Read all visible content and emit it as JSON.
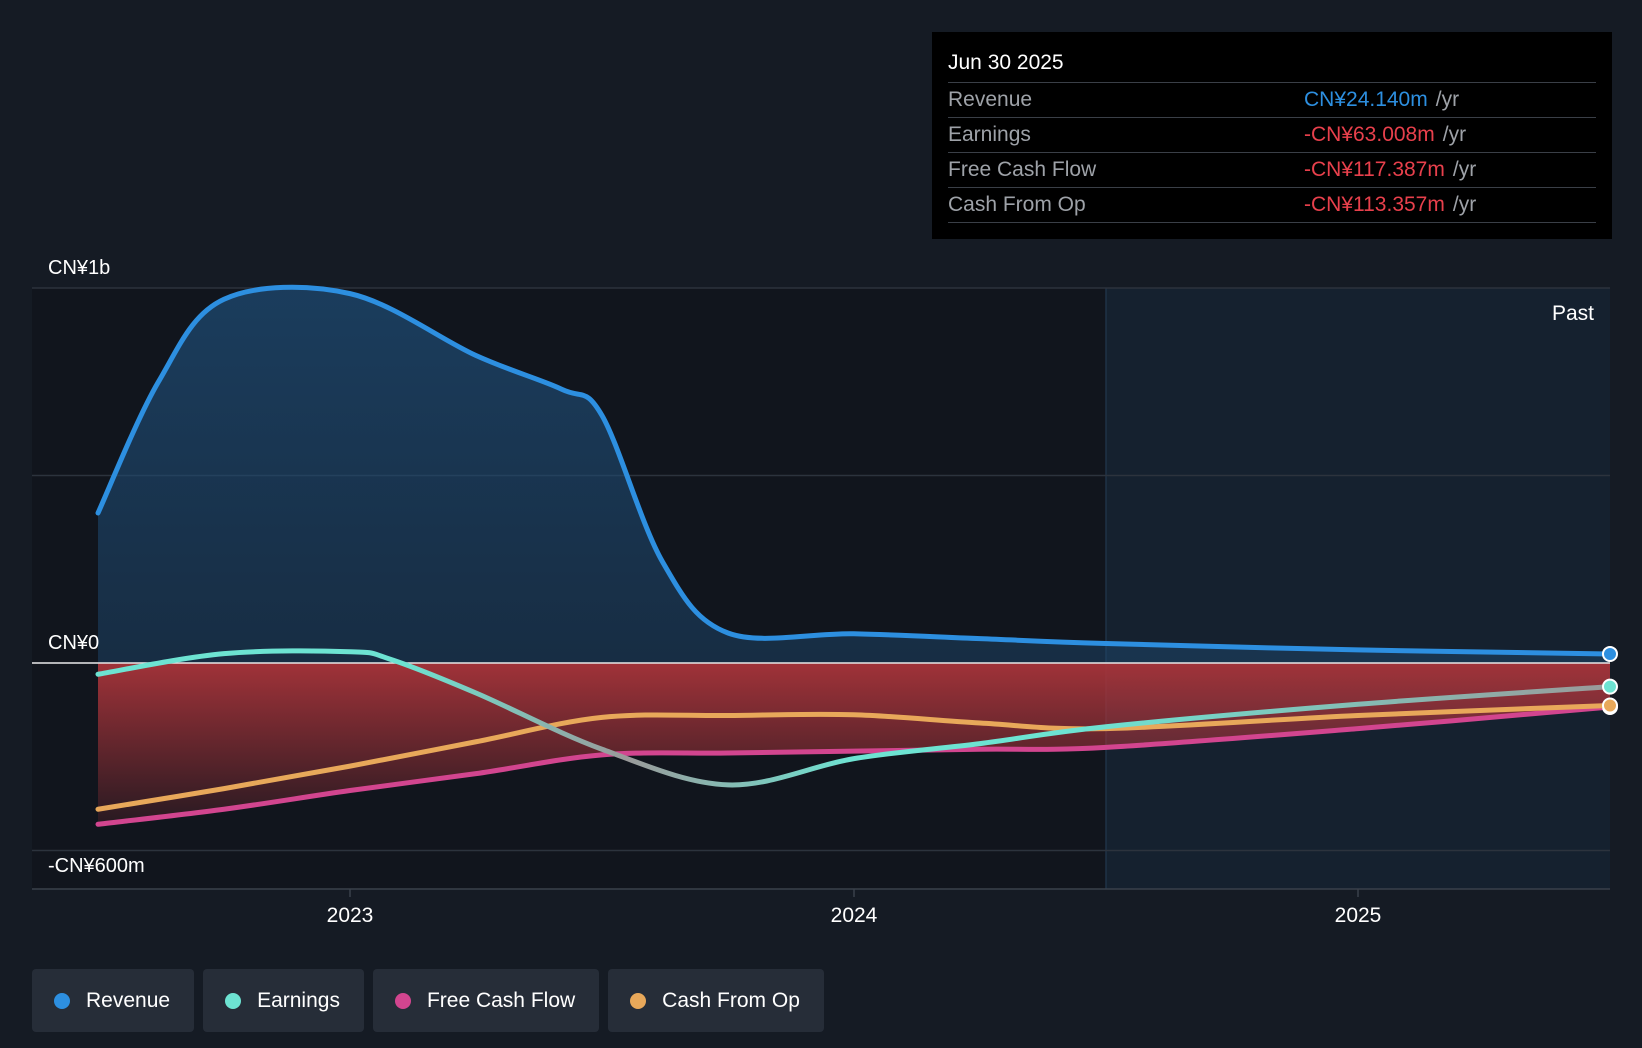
{
  "tooltip": {
    "date": "Jun 30 2025",
    "rows": [
      {
        "label": "Revenue",
        "value": "CN¥24.140m",
        "unit": "/yr",
        "color": "#2d8fe0"
      },
      {
        "label": "Earnings",
        "value": "-CN¥63.008m",
        "unit": "/yr",
        "color": "#e8404c"
      },
      {
        "label": "Free Cash Flow",
        "value": "-CN¥117.387m",
        "unit": "/yr",
        "color": "#e8404c"
      },
      {
        "label": "Cash From Op",
        "value": "-CN¥113.357m",
        "unit": "/yr",
        "color": "#e8404c"
      }
    ]
  },
  "legend": [
    {
      "label": "Revenue",
      "color": "#2d8fe0"
    },
    {
      "label": "Earnings",
      "color": "#6de3d2"
    },
    {
      "label": "Free Cash Flow",
      "color": "#d2458f"
    },
    {
      "label": "Cash From Op",
      "color": "#e8a85a"
    }
  ],
  "chart_data": {
    "type": "line",
    "past_label": "Past",
    "y_tick_labels": [
      "CN¥1b",
      "CN¥0",
      "-CN¥600m"
    ],
    "ylim": [
      -600,
      1000
    ],
    "y_grid": [
      1000,
      500,
      0,
      -500
    ],
    "x_tick_labels": [
      "2023",
      "2024",
      "2025"
    ],
    "x_ticks": [
      2023.0,
      2024.0,
      2025.0
    ],
    "xlim": [
      2022.37,
      2025.5
    ],
    "past_start": 2024.5,
    "grid": true,
    "legend_position": "bottom",
    "colors": {
      "revenue": "#2d8fe0",
      "earnings": "#6de3d2",
      "earnings_gray": "#9a9a9a",
      "fcf": "#d2458f",
      "cfo": "#e8a85a",
      "negative_fill": "#a8343a",
      "positive_fill": "#1e4a72"
    },
    "series": [
      {
        "name": "Revenue",
        "key": "revenue",
        "points": [
          [
            2022.5,
            400
          ],
          [
            2022.62,
            750
          ],
          [
            2022.75,
            970
          ],
          [
            2023.0,
            985
          ],
          [
            2023.25,
            820
          ],
          [
            2023.42,
            730
          ],
          [
            2023.5,
            660
          ],
          [
            2023.62,
            270
          ],
          [
            2023.75,
            80
          ],
          [
            2024.0,
            78
          ],
          [
            2024.25,
            65
          ],
          [
            2024.5,
            52
          ],
          [
            2025.0,
            35
          ],
          [
            2025.5,
            24.1
          ]
        ]
      },
      {
        "name": "Earnings",
        "key": "earnings",
        "points": [
          [
            2022.5,
            -30
          ],
          [
            2022.75,
            25
          ],
          [
            2023.0,
            30
          ],
          [
            2023.08,
            10
          ],
          [
            2023.25,
            -80
          ],
          [
            2023.5,
            -230
          ],
          [
            2023.75,
            -325
          ],
          [
            2024.0,
            -255
          ],
          [
            2024.25,
            -215
          ],
          [
            2024.5,
            -170
          ],
          [
            2025.0,
            -110
          ],
          [
            2025.5,
            -63
          ]
        ]
      },
      {
        "name": "Free Cash Flow",
        "key": "fcf",
        "points": [
          [
            2022.5,
            -430
          ],
          [
            2022.75,
            -390
          ],
          [
            2023.0,
            -340
          ],
          [
            2023.25,
            -295
          ],
          [
            2023.5,
            -245
          ],
          [
            2023.75,
            -240
          ],
          [
            2024.0,
            -235
          ],
          [
            2024.25,
            -230
          ],
          [
            2024.5,
            -225
          ],
          [
            2025.0,
            -175
          ],
          [
            2025.5,
            -117.4
          ]
        ]
      },
      {
        "name": "Cash From Op",
        "key": "cfo",
        "points": [
          [
            2022.5,
            -390
          ],
          [
            2022.75,
            -335
          ],
          [
            2023.0,
            -275
          ],
          [
            2023.25,
            -210
          ],
          [
            2023.5,
            -145
          ],
          [
            2023.75,
            -140
          ],
          [
            2024.0,
            -138
          ],
          [
            2024.25,
            -160
          ],
          [
            2024.5,
            -175
          ],
          [
            2025.0,
            -140
          ],
          [
            2025.5,
            -113.4
          ]
        ]
      }
    ]
  }
}
